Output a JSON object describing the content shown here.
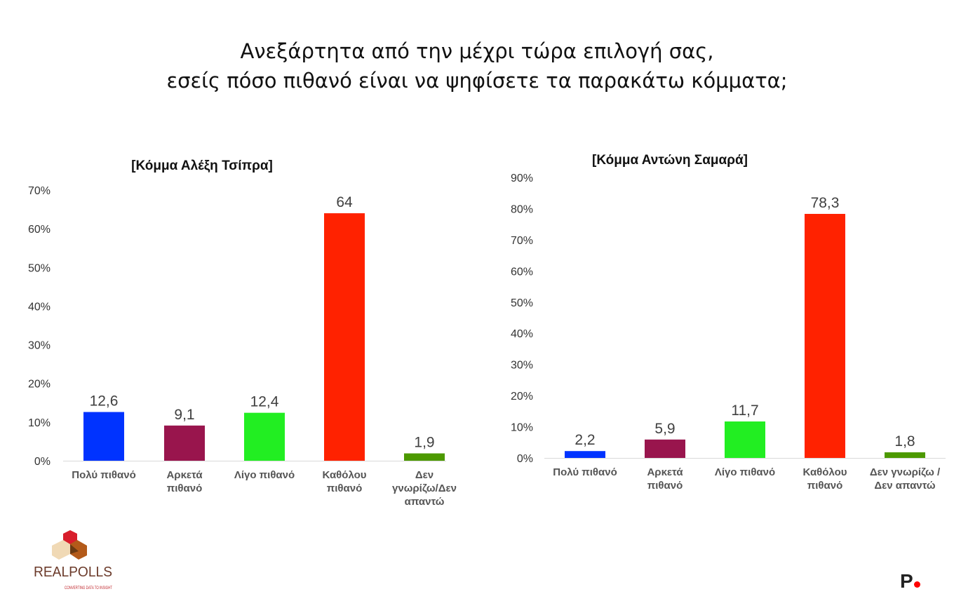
{
  "title": {
    "line1": "Ανεξάρτητα από την μέχρι τώρα επιλογή σας,",
    "line2": "εσείς πόσο πιθανό είναι να ψηφίσετε τα παρακάτω κόμματα;"
  },
  "chart_data": [
    {
      "type": "bar",
      "title": "[Κόμμα Αλέξη Τσίπρα]",
      "categories": [
        "Πολύ πιθανό",
        "Αρκετά πιθανό",
        "Λίγο πιθανό",
        "Καθόλου πιθανό",
        "Δεν γνωρίζω/Δεν απαντώ"
      ],
      "category_lines": [
        [
          "Πολύ πιθανό"
        ],
        [
          "Αρκετά",
          "πιθανό"
        ],
        [
          "Λίγο πιθανό"
        ],
        [
          "Καθόλου",
          "πιθανό"
        ],
        [
          "Δεν",
          "γνωρίζω/Δεν",
          "απαντώ"
        ]
      ],
      "values": [
        12.6,
        9.1,
        12.4,
        64,
        1.9
      ],
      "data_labels": [
        "12,6",
        "9,1",
        "12,4",
        "64",
        "1,9"
      ],
      "colors": [
        "#0033ff",
        "#99154d",
        "#22ee22",
        "#ff2200",
        "#4c9900"
      ],
      "ylim": [
        0,
        70
      ],
      "yticks": [
        "0%",
        "10%",
        "20%",
        "30%",
        "40%",
        "50%",
        "60%",
        "70%"
      ],
      "grid": false,
      "xlabel": "",
      "ylabel": ""
    },
    {
      "type": "bar",
      "title": "[Κόμμα Αντώνη Σαμαρά]",
      "categories": [
        "Πολύ πιθανό",
        "Αρκετά πιθανό",
        "Λίγο πιθανό",
        "Καθόλου πιθανό",
        "Δεν γνωρίζω / Δεν απαντώ"
      ],
      "category_lines": [
        [
          "Πολύ πιθανό"
        ],
        [
          "Αρκετά",
          "πιθανό"
        ],
        [
          "Λίγο πιθανό"
        ],
        [
          "Καθόλου",
          "πιθανό"
        ],
        [
          "Δεν γνωρίζω /",
          "Δεν απαντώ"
        ]
      ],
      "values": [
        2.2,
        5.9,
        11.7,
        78.3,
        1.8
      ],
      "data_labels": [
        "2,2",
        "5,9",
        "11,7",
        "78,3",
        "1,8"
      ],
      "colors": [
        "#0033ff",
        "#99154d",
        "#22ee22",
        "#ff2200",
        "#4c9900"
      ],
      "ylim": [
        0,
        90
      ],
      "yticks": [
        "0%",
        "10%",
        "20%",
        "30%",
        "40%",
        "50%",
        "60%",
        "70%",
        "80%",
        "90%"
      ],
      "grid": false,
      "xlabel": "",
      "ylabel": ""
    }
  ],
  "logos": {
    "left": "REALPOLLS",
    "left_tagline": "CONVERTING DATA TO INSIGHT",
    "right": "P"
  }
}
